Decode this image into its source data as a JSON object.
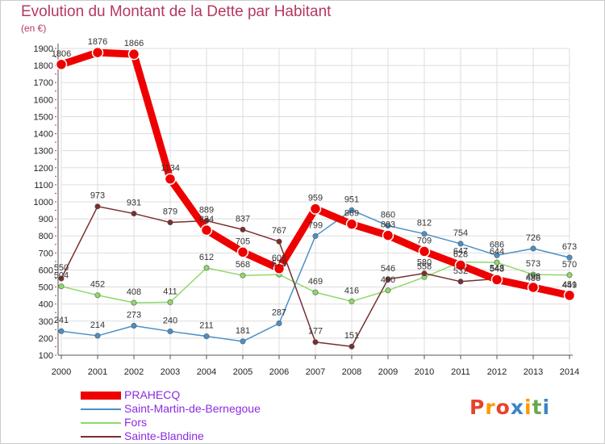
{
  "header": {
    "title": "Evolution du Montant de la Dette par Habitant",
    "unit": "(en €)"
  },
  "colors": {
    "title": "#b5395e",
    "axis": "#555555",
    "grid": "#dddddd",
    "legend_text": "#8a2be2"
  },
  "logo": {
    "text": "Proxiti",
    "letter_colors": [
      "#e8432b",
      "#ff9900",
      "#e8432b",
      "#3d85c6",
      "#ff9900",
      "#6aa84f",
      "#3d85c6"
    ]
  },
  "chart_data": {
    "type": "line",
    "title": "Evolution du Montant de la Dette par Habitant",
    "ylabel": "(en €)",
    "xlabel": "",
    "ylim": [
      100,
      1900
    ],
    "yticks": [
      100,
      200,
      300,
      400,
      500,
      600,
      700,
      800,
      900,
      1000,
      1100,
      1200,
      1300,
      1400,
      1500,
      1600,
      1700,
      1800,
      1900
    ],
    "grid": true,
    "legend_position": "bottom",
    "categories": [
      "2000",
      "2001",
      "2002",
      "2003",
      "2004",
      "2005",
      "2006",
      "2007",
      "2008",
      "2009",
      "2010",
      "2011",
      "2012",
      "2013",
      "2014"
    ],
    "series": [
      {
        "name": "PRAHECQ",
        "color": "#ee0000",
        "values": [
          1806,
          1876,
          1866,
          1134,
          834,
          705,
          608,
          959,
          869,
          803,
          709,
          628,
          543,
          498,
          451
        ]
      },
      {
        "name": "Saint-Martin-de-Bernegoue",
        "color": "#4a90c8",
        "values": [
          241,
          214,
          273,
          240,
          211,
          181,
          287,
          799,
          951,
          860,
          812,
          754,
          686,
          726,
          673
        ]
      },
      {
        "name": "Fors",
        "color": "#8fd96b",
        "values": [
          504,
          452,
          408,
          411,
          612,
          568,
          573,
          469,
          416,
          480,
          558,
          647,
          644,
          573,
          570
        ]
      },
      {
        "name": "Sainte-Blandine",
        "color": "#7a2e2e",
        "values": [
          550,
          973,
          931,
          879,
          889,
          837,
          767,
          177,
          151,
          546,
          580,
          532,
          548,
          488,
          449
        ]
      }
    ]
  }
}
